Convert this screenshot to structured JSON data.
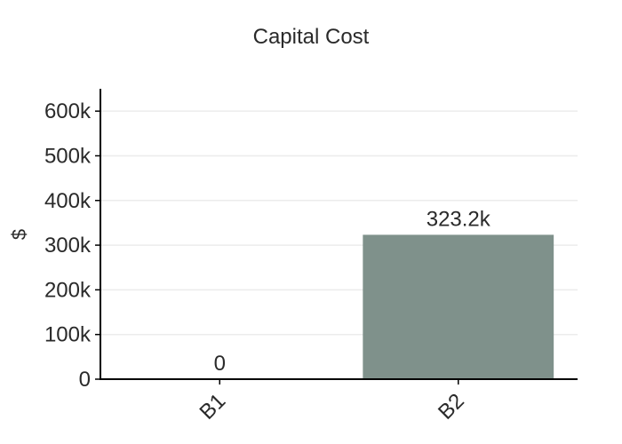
{
  "chart_data": {
    "type": "bar",
    "title": "Capital Cost",
    "xlabel": "",
    "ylabel": "$",
    "categories": [
      "B1",
      "B2"
    ],
    "values": [
      0,
      323200
    ],
    "data_labels": [
      "0",
      "323.2k"
    ],
    "ylim": [
      0,
      650000
    ],
    "yticks": [
      0,
      100000,
      200000,
      300000,
      400000,
      500000,
      600000
    ],
    "ytick_labels": [
      "0",
      "100k",
      "200k",
      "300k",
      "400k",
      "500k",
      "600k"
    ],
    "grid": true,
    "legend": "none",
    "bar_color": "#7f918b"
  }
}
